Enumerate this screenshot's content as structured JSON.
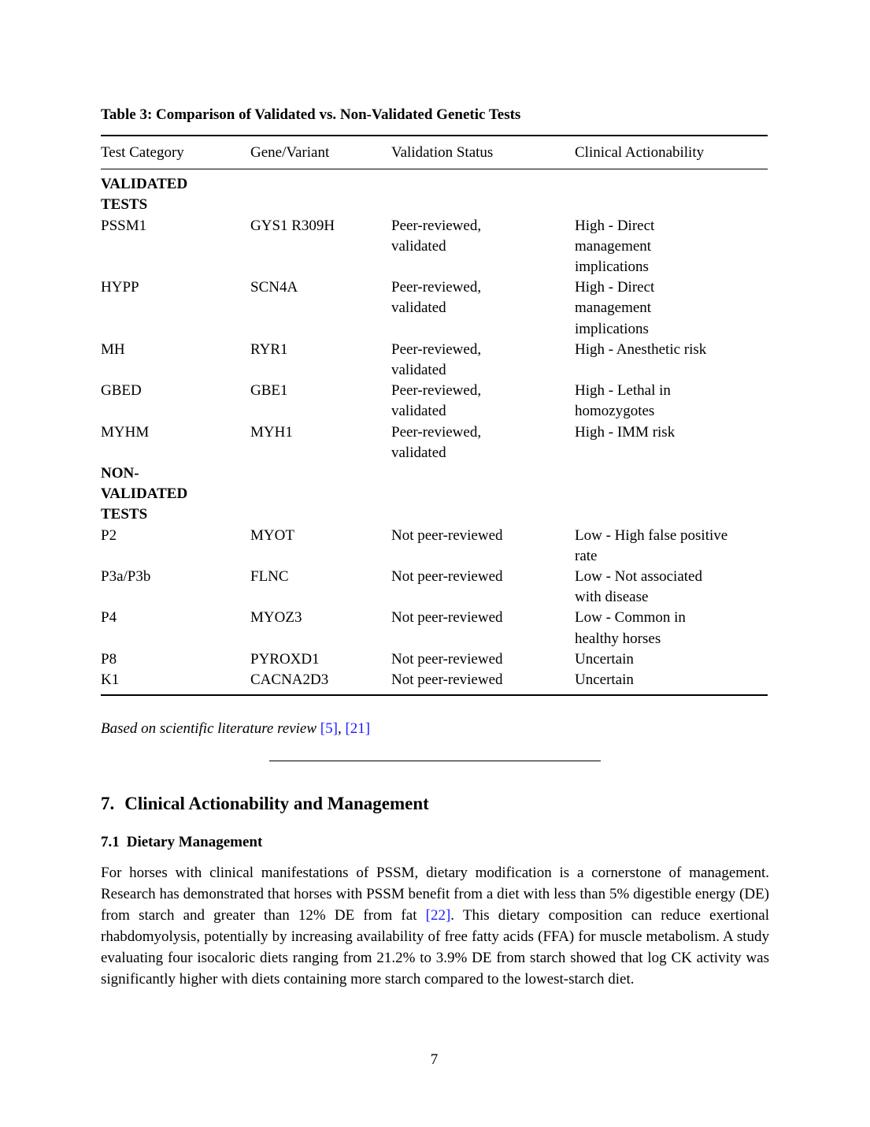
{
  "table": {
    "title": "Table 3: Comparison of Validated vs. Non-Validated Genetic Tests",
    "columns": [
      "Test Category",
      "Gene/Variant",
      "Validation Status",
      "Clinical Actionability"
    ],
    "rows": [
      {
        "category": true,
        "cells": [
          "VALIDATED\nTESTS",
          "",
          "",
          ""
        ]
      },
      {
        "category": false,
        "cells": [
          "PSSM1",
          "GYS1 R309H",
          "Peer-reviewed,\nvalidated",
          "High - Direct\nmanagement\nimplications"
        ]
      },
      {
        "category": false,
        "cells": [
          "HYPP",
          "SCN4A",
          "Peer-reviewed,\nvalidated",
          "High - Direct\nmanagement\nimplications"
        ]
      },
      {
        "category": false,
        "cells": [
          "MH",
          "RYR1",
          "Peer-reviewed,\nvalidated",
          "High - Anesthetic risk"
        ]
      },
      {
        "category": false,
        "cells": [
          "GBED",
          "GBE1",
          "Peer-reviewed,\nvalidated",
          "High - Lethal in\nhomozygotes"
        ]
      },
      {
        "category": false,
        "cells": [
          "MYHM",
          "MYH1",
          "Peer-reviewed,\nvalidated",
          "High - IMM risk"
        ]
      },
      {
        "category": true,
        "cells": [
          "NON-\nVALIDATED\nTESTS",
          "",
          "",
          ""
        ]
      },
      {
        "category": false,
        "cells": [
          "P2",
          "MYOT",
          "Not peer-reviewed",
          "Low - High false positive\nrate"
        ]
      },
      {
        "category": false,
        "cells": [
          "P3a/P3b",
          "FLNC",
          "Not peer-reviewed",
          "Low - Not associated\nwith disease"
        ]
      },
      {
        "category": false,
        "cells": [
          "P4",
          "MYOZ3",
          "Not peer-reviewed",
          "Low - Common in\nhealthy horses"
        ]
      },
      {
        "category": false,
        "cells": [
          "P8",
          "PYROXD1",
          "Not peer-reviewed",
          "Uncertain"
        ]
      },
      {
        "category": false,
        "cells": [
          "K1",
          "CACNA2D3",
          "Not peer-reviewed",
          "Uncertain"
        ]
      }
    ],
    "note": {
      "text": "Based on scientific literature review ",
      "citation1": "[5]",
      "separator": ", ",
      "citation2": "[21]"
    }
  },
  "section": {
    "number": "7.",
    "title": "Clinical Actionability and Management"
  },
  "subsection": {
    "number": "7.1",
    "title": "Dietary Management"
  },
  "paragraph": {
    "part1": "For horses with clinical manifestations of PSSM, dietary modification is a cornerstone of management. Research has demonstrated that horses with PSSM benefit from a diet with less than 5% digestible energy (DE) from starch and greater than 12% DE from fat ",
    "citation": "[22]",
    "part2": ". This dietary composition can reduce exertional rhabdomyolysis, potentially by increasing availability of free fatty acids (FFA) for muscle metabolism. A study evaluating four isocaloric diets ranging from 21.2% to 3.9% DE from starch showed that log CK activity was significantly higher with diets containing more starch compared to the lowest-starch diet."
  },
  "footer": {
    "page_number": "7"
  },
  "colors": {
    "link": "#1a1aff",
    "text": "#000000",
    "background": "#ffffff"
  }
}
